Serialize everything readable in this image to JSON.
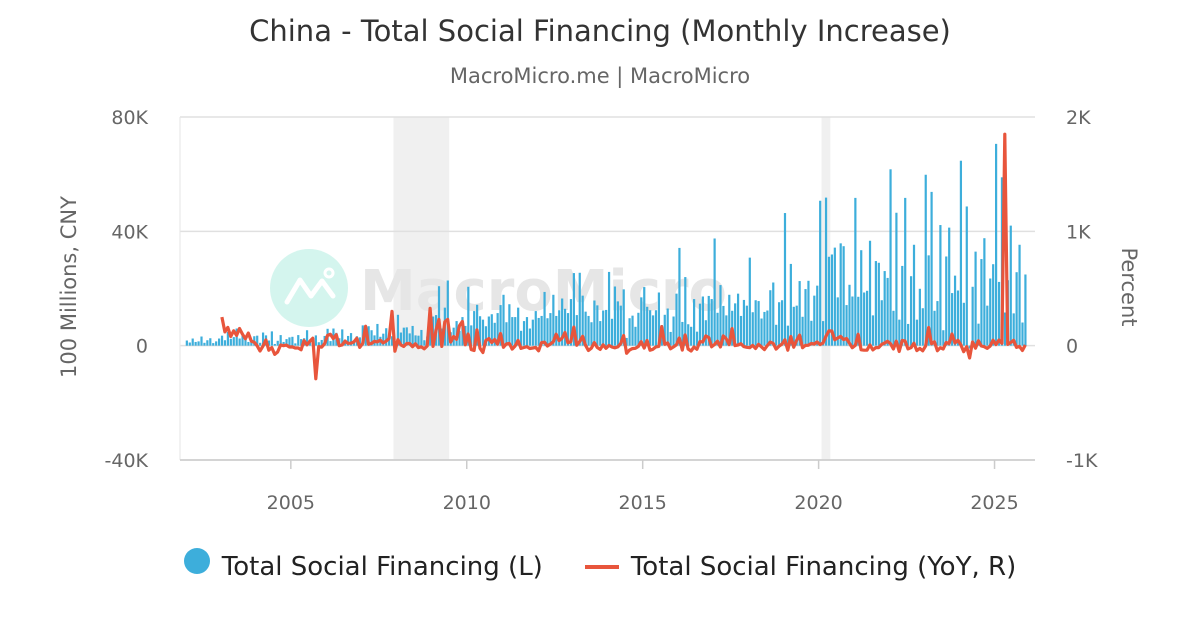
{
  "chart_data": {
    "type": "bar+line",
    "title": "China - Total Social Financing (Monthly Increase)",
    "subtitle": "MacroMicro.me | MacroMicro",
    "watermark": "MacroMicro",
    "ylabel_left": "100 Millions, CNY",
    "ylabel_right": "Percent",
    "ylim_left": [
      -40000,
      80000
    ],
    "ylim_right": [
      -1000,
      2000
    ],
    "yticks_left": [
      "80K",
      "40K",
      "0",
      "-40K"
    ],
    "yticks_left_values": [
      80000,
      40000,
      0,
      -40000
    ],
    "yticks_right": [
      "2K",
      "1K",
      "0",
      "-1K"
    ],
    "yticks_right_values": [
      2000,
      1000,
      0,
      -1000
    ],
    "xticks": [
      "2005",
      "2010",
      "2015",
      "2020",
      "2025"
    ],
    "xlim": [
      2001.85,
      2026.15
    ],
    "grid": true,
    "legend_position": "bottom",
    "shaded_periods": [
      [
        "2007-12",
        "2009-06"
      ],
      [
        "2020-02",
        "2020-04"
      ]
    ],
    "colors": {
      "bars": "#3daedb",
      "line": "#e8553c",
      "shade": "#f0f0f0"
    },
    "series": [
      {
        "name": "Total Social Financing (L)",
        "axis": "left",
        "kind": "bar",
        "monthly": [
          {
            "year": 2002,
            "values": [
              1800,
              1100,
              2500,
              1300,
              1500,
              3200,
              1000,
              1900,
              2600,
              900,
              1500,
              2500
            ]
          },
          {
            "year": 2003,
            "values": [
              3500,
              1900,
              4800,
              2400,
              3000,
              6000,
              2500,
              3800,
              3500,
              1300,
              2200,
              3300
            ]
          },
          {
            "year": 2004,
            "values": [
              3500,
              1000,
              4600,
              3600,
              1800,
              5000,
              600,
              1700,
              3700,
              1300,
              2300,
              2900
            ]
          },
          {
            "year": 2005,
            "values": [
              3100,
              800,
              3700,
              2300,
              2600,
              5400,
              1500,
              2800,
              3600,
              1200,
              2000,
              3400
            ]
          },
          {
            "year": 2006,
            "values": [
              5900,
              1600,
              6000,
              4500,
              2600,
              5700,
              2100,
              3400,
              4400,
              1600,
              3300,
              2900
            ]
          },
          {
            "year": 2007,
            "values": [
              7100,
              4300,
              6800,
              5400,
              3600,
              7600,
              3100,
              4200,
              6100,
              2600,
              3300,
              1500
            ]
          },
          {
            "year": 2008,
            "values": [
              10800,
              4600,
              6300,
              6400,
              4300,
              6900,
              3600,
              3500,
              5500,
              1900,
              3200,
              6400
            ]
          },
          {
            "year": 2009,
            "values": [
              10200,
              10700,
              20800,
              6000,
              13300,
              22800,
              4700,
              6300,
              8600,
              5200,
              10000,
              6900
            ]
          },
          {
            "year": 2010,
            "values": [
              20600,
              7100,
              12100,
              14300,
              10300,
              9100,
              6800,
              10200,
              11000,
              8000,
              11400,
              14200
            ]
          },
          {
            "year": 2011,
            "values": [
              17800,
              8200,
              14500,
              10000,
              10000,
              13300,
              5200,
              8600,
              10000,
              6000,
              9100,
              12100
            ]
          },
          {
            "year": 2012,
            "values": [
              9700,
              10400,
              18800,
              9600,
              11400,
              17800,
              10400,
              12400,
              16500,
              12900,
              11400,
              16300
            ]
          },
          {
            "year": 2013,
            "values": [
              25400,
              10700,
              25500,
              17500,
              11900,
              10400,
              8200,
              15800,
              14100,
              8600,
              12300,
              12500
            ]
          },
          {
            "year": 2014,
            "values": [
              25800,
              9400,
              20700,
              15500,
              14000,
              19700,
              2700,
              9600,
              10500,
              6600,
              11500,
              16900
            ]
          },
          {
            "year": 2015,
            "values": [
              20500,
              13600,
              12400,
              10600,
              12400,
              18600,
              7200,
              10800,
              13000,
              4800,
              10200,
              18200
            ]
          },
          {
            "year": 2016,
            "values": [
              34200,
              8300,
              24000,
              7500,
              6600,
              16300,
              4900,
              14700,
              17200,
              8900,
              17400,
              16300
            ]
          },
          {
            "year": 2017,
            "values": [
              37500,
              11500,
              21200,
              13900,
              10600,
              17800,
              12200,
              14800,
              18200,
              10400,
              16000,
              14000
            ]
          },
          {
            "year": 2018,
            "values": [
              30800,
              11700,
              15900,
              15600,
              9500,
              11800,
              12300,
              19400,
              22100,
              7300,
              15200,
              15900
            ]
          },
          {
            "year": 2019,
            "values": [
              46400,
              7000,
              28600,
              13600,
              14000,
              22600,
              10100,
              19800,
              22700,
              8700,
              17500,
              21000
            ]
          },
          {
            "year": 2020,
            "values": [
              50700,
              8600,
              51800,
              31100,
              31900,
              34300,
              16900,
              35800,
              34800,
              14200,
              21300,
              17200
            ]
          },
          {
            "year": 2021,
            "values": [
              51700,
              17100,
              33400,
              18600,
              19200,
              36700,
              10600,
              29600,
              29000,
              15900,
              26100,
              23700
            ]
          },
          {
            "year": 2022,
            "values": [
              61700,
              12200,
              46500,
              9100,
              27900,
              51700,
              7600,
              24300,
              35300,
              9100,
              19900,
              13100
            ]
          },
          {
            "year": 2023,
            "values": [
              59800,
              31600,
              53800,
              12200,
              15600,
              42200,
              5400,
              31200,
              41300,
              18400,
              24500,
              19300
            ]
          },
          {
            "year": 2024,
            "values": [
              64700,
              15000,
              48700,
              -1000,
              20600,
              32900,
              7700,
              30300,
              37600,
              14000,
              23500,
              28500
            ]
          },
          {
            "year": 2025,
            "values": [
              70600,
              22300,
              58900,
              11600,
              22900,
              42000,
              11300,
              25700,
              35300,
              8100,
              24900
            ]
          }
        ]
      },
      {
        "name": "Total Social Financing (YoY, R)",
        "axis": "right",
        "kind": "line",
        "monthly": [
          {
            "year": 2003,
            "values": [
              250,
              120,
              160,
              80,
              130,
              90,
              150,
              100,
              60,
              110,
              40,
              30
            ]
          },
          {
            "year": 2004,
            "values": [
              0,
              -47,
              -4,
              50,
              -40,
              -17,
              -76,
              -55,
              6,
              0,
              5,
              -12
            ]
          },
          {
            "year": 2005,
            "values": [
              -11,
              -20,
              -20,
              -36,
              44,
              8,
              40,
              65,
              -290,
              -8,
              -13,
              17
            ]
          },
          {
            "year": 2006,
            "values": [
              90,
              100,
              62,
              96,
              0,
              6,
              40,
              21,
              22,
              33,
              65,
              -15
            ]
          },
          {
            "year": 2007,
            "values": [
              20,
              170,
              13,
              20,
              38,
              33,
              48,
              24,
              39,
              63,
              300,
              -48
            ]
          },
          {
            "year": 2008,
            "values": [
              52,
              7,
              -7,
              19,
              19,
              -9,
              16,
              -17,
              -10,
              -27,
              -3,
              327
            ]
          },
          {
            "year": 2009,
            "values": [
              -6,
              133,
              230,
              -6,
              209,
              230,
              31,
              80,
              56,
              174,
              212,
              8
            ]
          },
          {
            "year": 2010,
            "values": [
              102,
              -34,
              -42,
              138,
              -23,
              -60,
              45,
              62,
              28,
              54,
              14,
              106
            ]
          },
          {
            "year": 2011,
            "values": [
              -14,
              15,
              20,
              -30,
              -3,
              46,
              -24,
              -16,
              -9,
              -25,
              -20,
              -15
            ]
          },
          {
            "year": 2012,
            "values": [
              -45,
              27,
              30,
              -4,
              14,
              34,
              100,
              44,
              65,
              115,
              25,
              35
            ]
          },
          {
            "year": 2013,
            "values": [
              162,
              3,
              36,
              82,
              4,
              -42,
              -21,
              27,
              -15,
              -33,
              8,
              -23
            ]
          },
          {
            "year": 2014,
            "values": [
              2,
              -12,
              -19,
              -11,
              18,
              89,
              -67,
              -39,
              -26,
              -23,
              -7,
              35
            ]
          },
          {
            "year": 2015,
            "values": [
              -21,
              45,
              -40,
              -32,
              -11,
              -6,
              167,
              12,
              24,
              -27,
              -11,
              8
            ]
          },
          {
            "year": 2016,
            "values": [
              67,
              -39,
              94,
              -29,
              -47,
              -12,
              -32,
              36,
              32,
              85,
              71,
              -10
            ]
          },
          {
            "year": 2017,
            "values": [
              10,
              39,
              -12,
              85,
              61,
              9,
              149,
              1,
              6,
              17,
              -8,
              -14
            ]
          },
          {
            "year": 2018,
            "values": [
              -18,
              2,
              -25,
              12,
              -10,
              -34,
              1,
              31,
              21,
              -30,
              -5,
              14
            ]
          },
          {
            "year": 2019,
            "values": [
              51,
              -40,
              80,
              -13,
              47,
              92,
              -18,
              2,
              3,
              19,
              15,
              32
            ]
          },
          {
            "year": 2020,
            "values": [
              9,
              23,
              81,
              129,
              128,
              52,
              67,
              81,
              53,
              63,
              22,
              -18
            ]
          },
          {
            "year": 2021,
            "values": [
              2,
              99,
              -36,
              -40,
              -40,
              7,
              -37,
              -17,
              -17,
              12,
              23,
              38
            ]
          },
          {
            "year": 2022,
            "values": [
              19,
              -29,
              39,
              -51,
              45,
              41,
              -28,
              -18,
              22,
              -43,
              -24,
              -45
            ]
          },
          {
            "year": 2023,
            "values": [
              -3,
              159,
              16,
              34,
              -44,
              -18,
              -29,
              28,
              17,
              102,
              23,
              47
            ]
          },
          {
            "year": 2024,
            "values": [
              8,
              -53,
              -9,
              -108,
              32,
              -22,
              43,
              -3,
              -9,
              -24,
              -4,
              48
            ]
          },
          {
            "year": 2025,
            "values": [
              9,
              49,
              21,
              1850,
              11,
              28,
              47,
              -15,
              -6,
              -42,
              6
            ]
          }
        ]
      }
    ]
  }
}
